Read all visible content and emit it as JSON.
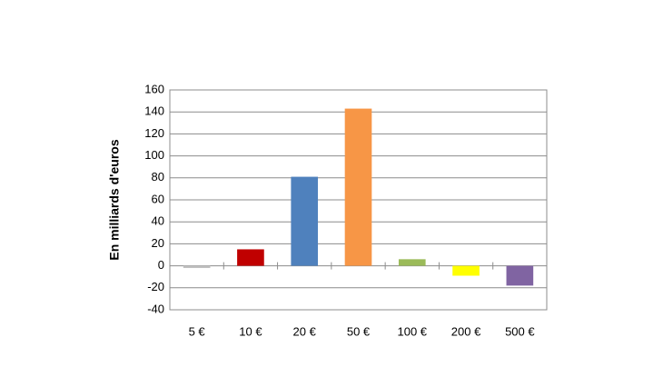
{
  "chart_data": {
    "type": "bar",
    "y_label": "En milliards d'euros",
    "categories": [
      "5 €",
      "10 €",
      "20 €",
      "50 €",
      "100 €",
      "200 €",
      "500 €"
    ],
    "values": [
      -2,
      15,
      81,
      143,
      6,
      -9,
      -18
    ],
    "colors": [
      "#bfbfbf",
      "#c00000",
      "#4f81bd",
      "#f79646",
      "#9bbb59",
      "#ffff00",
      "#8064a2"
    ],
    "ylim": [
      -40,
      160
    ],
    "yticks": [
      -40,
      -20,
      0,
      20,
      40,
      60,
      80,
      100,
      120,
      140,
      160
    ],
    "grid": true
  }
}
